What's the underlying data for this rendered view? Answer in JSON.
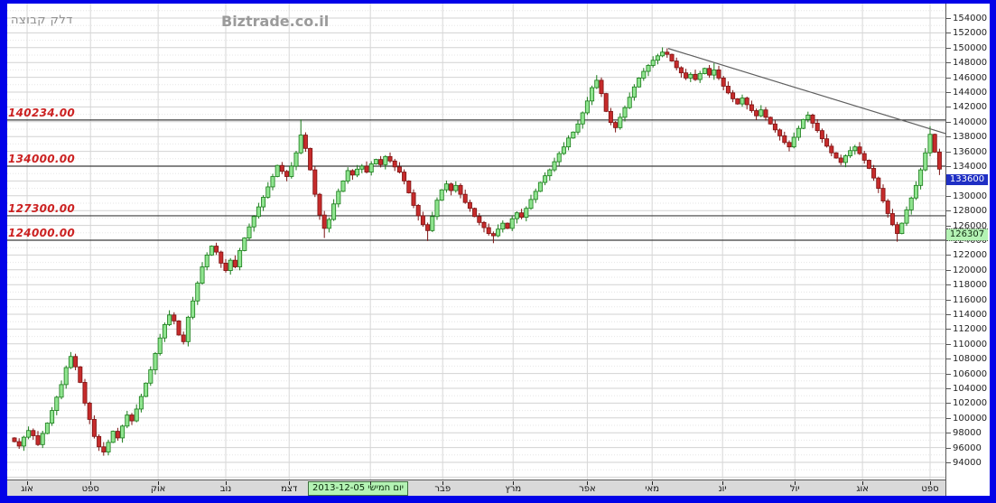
{
  "header": {
    "title": "דלק קבוצה",
    "watermark": "Biztrade.co.il"
  },
  "chart_data": {
    "type": "candlestick",
    "title": "דלק קבוצה",
    "legend_position": "none",
    "grid": true,
    "y_axis": {
      "side": "right",
      "min": 94000,
      "max": 154000,
      "step": 2000,
      "minor_step": 1000
    },
    "x_axis": {
      "months": [
        {
          "label": "אוג",
          "index": 2.7
        },
        {
          "label": "ספט",
          "index": 16.2
        },
        {
          "label": "אוק",
          "index": 30.6
        },
        {
          "label": "נוב",
          "index": 45.0
        },
        {
          "label": "דצמ",
          "index": 58.5
        },
        {
          "label": "",
          "index": 75.8
        },
        {
          "label": "פבר",
          "index": 91.2
        },
        {
          "label": "מרץ",
          "index": 106.2
        },
        {
          "label": "אפר",
          "index": 122.0
        },
        {
          "label": "מאי",
          "index": 135.8
        },
        {
          "label": "יונ",
          "index": 150.8
        },
        {
          "label": "יול",
          "index": 166.2
        },
        {
          "label": "אוג",
          "index": 180.6
        },
        {
          "label": "ספט",
          "index": 195.0
        }
      ],
      "date_badge": {
        "label": "יום חמישי 2013-12-05",
        "index": 62.5
      }
    },
    "first_open": 97300,
    "closes": [
      96800,
      96200,
      97400,
      98300,
      97600,
      96400,
      97900,
      99300,
      101000,
      102800,
      104500,
      106800,
      108300,
      106900,
      104800,
      102000,
      99800,
      97500,
      96100,
      95400,
      96700,
      98200,
      97300,
      98900,
      100400,
      99600,
      101200,
      102900,
      104700,
      106500,
      108700,
      110800,
      112600,
      113900,
      113100,
      111200,
      110300,
      113600,
      115800,
      118200,
      120400,
      122000,
      123200,
      122400,
      120900,
      119900,
      121300,
      120400,
      122600,
      124300,
      125800,
      127200,
      128500,
      129800,
      131200,
      132600,
      134100,
      133300,
      132600,
      134000,
      135800,
      138200,
      136400,
      133500,
      130200,
      127400,
      125600,
      126800,
      128900,
      130600,
      132000,
      133400,
      132800,
      133600,
      134000,
      133200,
      134300,
      134900,
      134200,
      135300,
      134700,
      133900,
      133200,
      132000,
      130400,
      128700,
      127300,
      126100,
      125300,
      127200,
      129400,
      130800,
      131600,
      130700,
      131400,
      130200,
      129100,
      128300,
      127200,
      126400,
      125700,
      124900,
      124600,
      125500,
      126300,
      125600,
      126900,
      127700,
      127100,
      128300,
      129500,
      130600,
      131800,
      132700,
      133500,
      134600,
      135700,
      136600,
      137800,
      138600,
      139700,
      141200,
      142800,
      144600,
      145600,
      143800,
      141400,
      139900,
      139200,
      140600,
      141900,
      143300,
      144700,
      145900,
      146800,
      147600,
      148300,
      148900,
      149400,
      149100,
      148200,
      147300,
      146600,
      145900,
      146400,
      145700,
      146500,
      147200,
      146300,
      147000,
      145900,
      144800,
      143900,
      143100,
      142400,
      143200,
      142300,
      141500,
      140800,
      141600,
      140600,
      139700,
      138900,
      138100,
      137200,
      136600,
      137900,
      139100,
      140300,
      140900,
      139800,
      138800,
      137700,
      136700,
      135800,
      135100,
      134500,
      135400,
      136100,
      136600,
      135700,
      134800,
      133700,
      132400,
      131000,
      129300,
      127600,
      126100,
      124900,
      126300,
      128100,
      129700,
      131400,
      133500,
      135800,
      138300,
      135900,
      133600
    ],
    "wick_overrides": {
      "12": {
        "high": 108900
      },
      "19": {
        "low": 94900
      },
      "61": {
        "high": 140300
      },
      "66": {
        "low": 124300
      },
      "88": {
        "low": 123900
      },
      "102": {
        "low": 123600
      },
      "124": {
        "high": 146300
      },
      "139": {
        "high": 149900
      },
      "149": {
        "high": 148000
      },
      "165": {
        "low": 136000
      },
      "188": {
        "low": 123800
      },
      "195": {
        "high": 139400
      },
      "197": {
        "low": 132800
      }
    },
    "key_levels": [
      {
        "price": 140234,
        "label": "140234.00"
      },
      {
        "price": 134000,
        "label": "134000.00"
      },
      {
        "price": 127300,
        "label": "127300.00"
      },
      {
        "price": 124000,
        "label": "124000.00"
      }
    ],
    "trendline": {
      "from_index": 139.2,
      "from_price": 149900,
      "to_index": 198.3,
      "to_price": 138400
    },
    "last_price_badge": {
      "value": "133600",
      "price": 133600
    },
    "secondary_badge": {
      "value": "126307",
      "price": 126307
    },
    "colors": {
      "up_fill": "#8fe48f",
      "up_stroke": "#177a17",
      "down_fill": "#c62b2b",
      "down_stroke": "#7c1212",
      "level_line": "#3c3c3c",
      "level_label": "#cc2222",
      "trendline": "#5f5f5f",
      "grid_major": "#d2d2d2",
      "grid_minor": "#e6e6e6",
      "month_line": "#d7d7d7",
      "badge_last_bg": "#1f2fc4",
      "badge_last_fg": "#ffffff",
      "badge_secondary_bg": "#b4f3b4",
      "frame": "#0202e8"
    }
  }
}
